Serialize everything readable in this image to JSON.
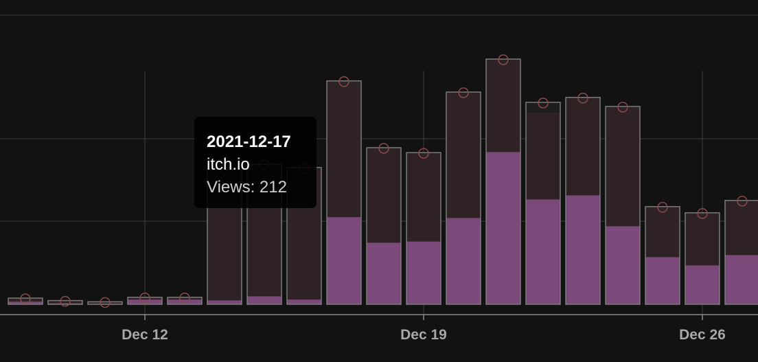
{
  "colors": {
    "background": "#121212",
    "gridline": "#3c3c3c",
    "axis": "#8a8a8a",
    "bar_outline": "#7a7a7a",
    "itch_io": "#7c4a7a",
    "dark_segment": "#1f1d20",
    "brown_segment": "#2e2225",
    "marker": "#8a4a4e"
  },
  "chart_data": {
    "type": "bar",
    "stacked": true,
    "x_tick_labels": [
      "Dec 12",
      "Dec 19",
      "Dec 26"
    ],
    "x": [
      "2021-12-09",
      "2021-12-10",
      "2021-12-11",
      "2021-12-12",
      "2021-12-13",
      "2021-12-14",
      "2021-12-15",
      "2021-12-16",
      "2021-12-17",
      "2021-12-18",
      "2021-12-19",
      "2021-12-20",
      "2021-12-21",
      "2021-12-22",
      "2021-12-23",
      "2021-12-24",
      "2021-12-25",
      "2021-12-26",
      "2021-12-27"
    ],
    "series": [
      {
        "name": "itch.io",
        "color": "#7c4a7a",
        "values": [
          7,
          3,
          2,
          12,
          12,
          10,
          20,
          12,
          212,
          150,
          153,
          210,
          370,
          255,
          265,
          190,
          115,
          95,
          120
        ]
      },
      {
        "values": [
          8,
          6,
          4,
          5,
          5,
          320,
          320,
          320,
          330,
          230,
          215,
          305,
          225,
          210,
          237,
          290,
          122,
          127,
          132
        ]
      },
      {
        "values": [
          0,
          0,
          0,
          0,
          0,
          0,
          0,
          0,
          0,
          0,
          0,
          0,
          0,
          25,
          0,
          0,
          0,
          0,
          0
        ]
      }
    ],
    "grid": true,
    "legend": "none"
  },
  "tooltip": {
    "date": "2021-12-17",
    "source": "itch.io",
    "views": "Views: 212"
  }
}
